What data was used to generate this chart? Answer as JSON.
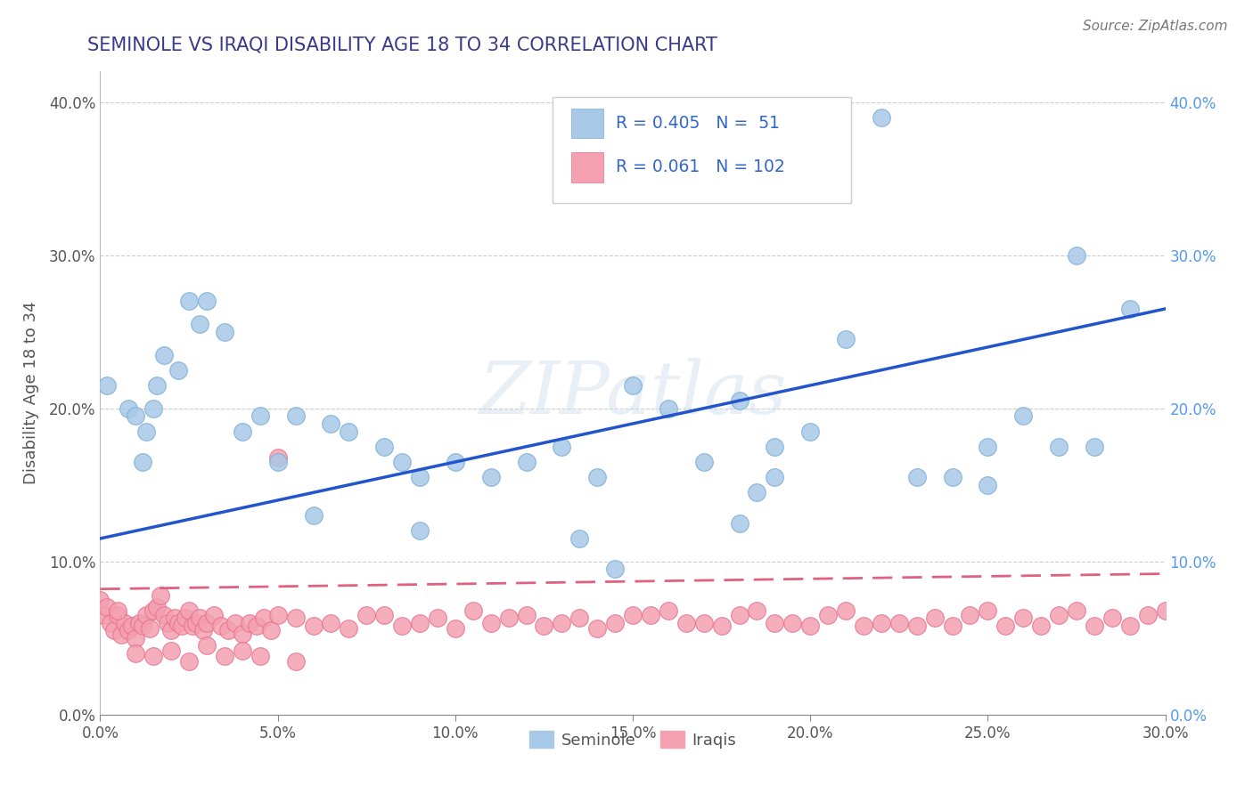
{
  "title": "SEMINOLE VS IRAQI DISABILITY AGE 18 TO 34 CORRELATION CHART",
  "source": "Source: ZipAtlas.com",
  "xmin": 0.0,
  "xmax": 0.3,
  "ymin": 0.0,
  "ymax": 0.42,
  "seminole_R": 0.405,
  "seminole_N": 51,
  "iraqi_R": 0.061,
  "iraqi_N": 102,
  "seminole_color": "#a8c8e8",
  "iraqi_color": "#f4a0b0",
  "seminole_edge": "#7aaed4",
  "iraqi_edge": "#e87090",
  "seminole_line_color": "#2255cc",
  "iraqi_line_color": "#e06080",
  "legend_text_color": "#3366cc",
  "title_color": "#3a3a8c",
  "background_color": "#FFFFFF",
  "grid_color": "#cccccc",
  "watermark": "ZIPatlas",
  "seminole_x": [
    0.002,
    0.008,
    0.01,
    0.012,
    0.013,
    0.015,
    0.016,
    0.018,
    0.022,
    0.025,
    0.028,
    0.03,
    0.035,
    0.04,
    0.045,
    0.05,
    0.055,
    0.065,
    0.07,
    0.08,
    0.085,
    0.09,
    0.1,
    0.11,
    0.12,
    0.13,
    0.14,
    0.15,
    0.16,
    0.17,
    0.18,
    0.19,
    0.2,
    0.21,
    0.22,
    0.23,
    0.24,
    0.25,
    0.26,
    0.27,
    0.28,
    0.29,
    0.18,
    0.185,
    0.19,
    0.135,
    0.06,
    0.09,
    0.145,
    0.25,
    0.275
  ],
  "seminole_y": [
    0.215,
    0.2,
    0.195,
    0.165,
    0.185,
    0.2,
    0.215,
    0.235,
    0.225,
    0.27,
    0.255,
    0.27,
    0.25,
    0.185,
    0.195,
    0.165,
    0.195,
    0.19,
    0.185,
    0.175,
    0.165,
    0.155,
    0.165,
    0.155,
    0.165,
    0.175,
    0.155,
    0.215,
    0.2,
    0.165,
    0.205,
    0.175,
    0.185,
    0.245,
    0.39,
    0.155,
    0.155,
    0.15,
    0.195,
    0.175,
    0.175,
    0.265,
    0.125,
    0.145,
    0.155,
    0.115,
    0.13,
    0.12,
    0.095,
    0.175,
    0.3
  ],
  "iraqi_x": [
    0.0,
    0.001,
    0.002,
    0.003,
    0.004,
    0.005,
    0.006,
    0.007,
    0.008,
    0.009,
    0.01,
    0.011,
    0.012,
    0.013,
    0.014,
    0.015,
    0.016,
    0.017,
    0.018,
    0.019,
    0.02,
    0.021,
    0.022,
    0.023,
    0.024,
    0.025,
    0.026,
    0.027,
    0.028,
    0.029,
    0.03,
    0.032,
    0.034,
    0.036,
    0.038,
    0.04,
    0.042,
    0.044,
    0.046,
    0.048,
    0.05,
    0.055,
    0.06,
    0.065,
    0.07,
    0.075,
    0.08,
    0.085,
    0.09,
    0.095,
    0.1,
    0.105,
    0.11,
    0.115,
    0.12,
    0.125,
    0.13,
    0.135,
    0.14,
    0.145,
    0.15,
    0.155,
    0.16,
    0.165,
    0.17,
    0.175,
    0.18,
    0.185,
    0.19,
    0.195,
    0.2,
    0.205,
    0.21,
    0.215,
    0.22,
    0.225,
    0.23,
    0.235,
    0.24,
    0.245,
    0.25,
    0.255,
    0.26,
    0.265,
    0.27,
    0.275,
    0.28,
    0.285,
    0.29,
    0.295,
    0.3,
    0.01,
    0.015,
    0.02,
    0.025,
    0.03,
    0.035,
    0.04,
    0.045,
    0.005,
    0.05,
    0.055
  ],
  "iraqi_y": [
    0.075,
    0.065,
    0.07,
    0.06,
    0.055,
    0.065,
    0.052,
    0.06,
    0.055,
    0.058,
    0.05,
    0.06,
    0.058,
    0.065,
    0.056,
    0.068,
    0.07,
    0.078,
    0.065,
    0.06,
    0.055,
    0.063,
    0.06,
    0.058,
    0.063,
    0.068,
    0.058,
    0.06,
    0.063,
    0.055,
    0.06,
    0.065,
    0.058,
    0.055,
    0.06,
    0.053,
    0.06,
    0.058,
    0.063,
    0.055,
    0.065,
    0.063,
    0.058,
    0.06,
    0.056,
    0.065,
    0.065,
    0.058,
    0.06,
    0.063,
    0.056,
    0.068,
    0.06,
    0.063,
    0.065,
    0.058,
    0.06,
    0.063,
    0.056,
    0.06,
    0.065,
    0.065,
    0.068,
    0.06,
    0.06,
    0.058,
    0.065,
    0.068,
    0.06,
    0.06,
    0.058,
    0.065,
    0.068,
    0.058,
    0.06,
    0.06,
    0.058,
    0.063,
    0.058,
    0.065,
    0.068,
    0.058,
    0.063,
    0.058,
    0.065,
    0.068,
    0.058,
    0.063,
    0.058,
    0.065,
    0.068,
    0.04,
    0.038,
    0.042,
    0.035,
    0.045,
    0.038,
    0.042,
    0.038,
    0.068,
    0.168,
    0.035
  ],
  "sem_line_x0": 0.0,
  "sem_line_y0": 0.115,
  "sem_line_x1": 0.3,
  "sem_line_y1": 0.265,
  "irq_line_x0": 0.0,
  "irq_line_y0": 0.082,
  "irq_line_x1": 0.3,
  "irq_line_y1": 0.092
}
